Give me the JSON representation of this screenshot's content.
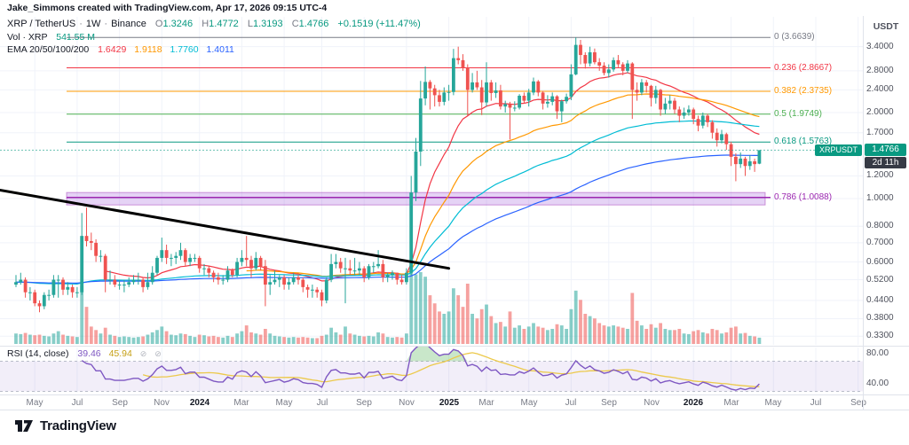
{
  "attribution": "Jake_Simmons created with TradingView.com, Apr 17, 2026 09:15 UTC-4",
  "header": {
    "symbol": "XRP / TetherUS",
    "interval": "1W",
    "exchange": "Binance",
    "o_label": "O",
    "o": "1.3246",
    "h_label": "H",
    "h": "1.4772",
    "l_label": "L",
    "l": "1.3193",
    "c_label": "C",
    "c": "1.4766",
    "change": "+0.1519 (+11.47%)"
  },
  "volume_legend": {
    "label": "Vol · XRP",
    "value": "541.55 M"
  },
  "ema_legend": {
    "label": "EMA 20/50/100/200",
    "values": [
      "1.6429",
      "1.9118",
      "1.7760",
      "1.4011"
    ],
    "colors": [
      "#f23645",
      "#ff9800",
      "#00bcd4",
      "#2962ff"
    ]
  },
  "rsi_legend": {
    "label": "RSI (14, close)",
    "value": "39.46",
    "ma_value": "45.94",
    "null1": "⊘",
    "null2": "⊘"
  },
  "price_scale": {
    "currency": "USDT",
    "ticks": [
      "3.4000",
      "2.8000",
      "2.4000",
      "2.0000",
      "1.7000",
      "1.2000",
      "1.0000",
      "0.8000",
      "0.7000",
      "0.6000",
      "0.5200",
      "0.4400",
      "0.3800",
      "0.3300"
    ],
    "current_price": "1.4766",
    "countdown": "2d 11h",
    "symbol_label": "XRPUSDT"
  },
  "rsi_scale": {
    "ticks": [
      {
        "label": "80.00",
        "value": 80
      },
      {
        "label": "40.00",
        "value": 40
      }
    ]
  },
  "time_scale": {
    "ticks": [
      {
        "label": "May",
        "week": 4
      },
      {
        "label": "Jul",
        "week": 13
      },
      {
        "label": "Sep",
        "week": 22
      },
      {
        "label": "Nov",
        "week": 31
      },
      {
        "label": "2024",
        "week": 39,
        "year": true
      },
      {
        "label": "Mar",
        "week": 48
      },
      {
        "label": "May",
        "week": 57
      },
      {
        "label": "Jul",
        "week": 65
      },
      {
        "label": "Sep",
        "week": 74
      },
      {
        "label": "Nov",
        "week": 83
      },
      {
        "label": "2025",
        "week": 92,
        "year": true
      },
      {
        "label": "Mar",
        "week": 100
      },
      {
        "label": "May",
        "week": 109
      },
      {
        "label": "Jul",
        "week": 118
      },
      {
        "label": "Sep",
        "week": 126
      },
      {
        "label": "Nov",
        "week": 135
      },
      {
        "label": "2026",
        "week": 144,
        "year": true
      },
      {
        "label": "Mar",
        "week": 152
      },
      {
        "label": "May",
        "week": 161
      },
      {
        "label": "Jul",
        "week": 170
      },
      {
        "label": "Sep",
        "week": 179
      }
    ]
  },
  "fib": {
    "levels": [
      {
        "label": "0 (3.6639)",
        "price": 3.6639,
        "color": "#787b86"
      },
      {
        "label": "0.236 (2.8667)",
        "price": 2.8667,
        "color": "#f23645"
      },
      {
        "label": "0.382 (2.3735)",
        "price": 2.3735,
        "color": "#ff9800"
      },
      {
        "label": "0.5 (1.9749)",
        "price": 1.9749,
        "color": "#4caf50"
      },
      {
        "label": "0.618 (1.5763)",
        "price": 1.5763,
        "color": "#089981"
      },
      {
        "label": "0.786 (1.0088)",
        "price": 1.0088,
        "color": "#9c27b0",
        "band": [
          0.95,
          1.05
        ]
      }
    ]
  },
  "trendline": {
    "w1": -3.4,
    "p1": 1.07,
    "w2": 92,
    "p2": 0.57
  },
  "footer": {
    "brand": "TradingView"
  },
  "chart_data": {
    "type": "candlestick",
    "symbol": "XRPUSDT",
    "exchange": "Binance",
    "timeframe": "1W",
    "scale": "log",
    "start_week": "2023-04-03",
    "columns": [
      "open",
      "high",
      "low",
      "close",
      "volume_millions"
    ],
    "ema_periods": [
      20,
      50,
      100,
      200
    ],
    "sub_indicator": {
      "name": "RSI",
      "period": 14,
      "bands": [
        70,
        30
      ],
      "last": 39.46,
      "ma_last": 45.94
    },
    "volume_last_label": "541.55 M",
    "price_range_visible": [
      0.317,
      4.14
    ],
    "candles": [
      [
        0.5,
        0.54,
        0.49,
        0.51,
        900
      ],
      [
        0.51,
        0.55,
        0.5,
        0.52,
        850
      ],
      [
        0.52,
        0.53,
        0.45,
        0.47,
        950
      ],
      [
        0.47,
        0.49,
        0.44,
        0.47,
        800
      ],
      [
        0.47,
        0.48,
        0.42,
        0.43,
        750
      ],
      [
        0.43,
        0.44,
        0.4,
        0.42,
        800
      ],
      [
        0.42,
        0.47,
        0.41,
        0.46,
        700
      ],
      [
        0.46,
        0.48,
        0.44,
        0.46,
        650
      ],
      [
        0.46,
        0.54,
        0.45,
        0.52,
        900
      ],
      [
        0.52,
        0.54,
        0.45,
        0.52,
        1100
      ],
      [
        0.52,
        0.53,
        0.46,
        0.48,
        800
      ],
      [
        0.48,
        0.51,
        0.46,
        0.49,
        700
      ],
      [
        0.49,
        0.5,
        0.45,
        0.47,
        650
      ],
      [
        0.47,
        0.49,
        0.45,
        0.47,
        600
      ],
      [
        0.47,
        0.89,
        0.46,
        0.74,
        5000
      ],
      [
        0.74,
        0.93,
        0.68,
        0.71,
        3200
      ],
      [
        0.71,
        0.76,
        0.66,
        0.7,
        1500
      ],
      [
        0.7,
        0.72,
        0.6,
        0.63,
        1200
      ],
      [
        0.63,
        0.66,
        0.6,
        0.63,
        900
      ],
      [
        0.63,
        0.64,
        0.47,
        0.52,
        1400
      ],
      [
        0.52,
        0.56,
        0.5,
        0.52,
        800
      ],
      [
        0.52,
        0.54,
        0.49,
        0.5,
        700
      ],
      [
        0.5,
        0.52,
        0.48,
        0.5,
        600
      ],
      [
        0.5,
        0.52,
        0.47,
        0.5,
        650
      ],
      [
        0.5,
        0.53,
        0.49,
        0.51,
        600
      ],
      [
        0.51,
        0.54,
        0.5,
        0.52,
        550
      ],
      [
        0.52,
        0.55,
        0.5,
        0.52,
        600
      ],
      [
        0.52,
        0.53,
        0.47,
        0.49,
        650
      ],
      [
        0.49,
        0.55,
        0.48,
        0.51,
        800
      ],
      [
        0.51,
        0.58,
        0.5,
        0.55,
        1000
      ],
      [
        0.55,
        0.63,
        0.54,
        0.62,
        1200
      ],
      [
        0.62,
        0.73,
        0.6,
        0.66,
        1500
      ],
      [
        0.66,
        0.69,
        0.59,
        0.62,
        1100
      ],
      [
        0.62,
        0.64,
        0.58,
        0.62,
        800
      ],
      [
        0.62,
        0.65,
        0.59,
        0.63,
        750
      ],
      [
        0.63,
        0.7,
        0.61,
        0.66,
        900
      ],
      [
        0.66,
        0.67,
        0.58,
        0.6,
        850
      ],
      [
        0.6,
        0.64,
        0.58,
        0.62,
        700
      ],
      [
        0.62,
        0.64,
        0.6,
        0.62,
        600
      ],
      [
        0.62,
        0.63,
        0.55,
        0.57,
        800
      ],
      [
        0.57,
        0.59,
        0.54,
        0.57,
        750
      ],
      [
        0.57,
        0.58,
        0.53,
        0.55,
        650
      ],
      [
        0.55,
        0.56,
        0.51,
        0.53,
        700
      ],
      [
        0.53,
        0.55,
        0.5,
        0.52,
        600
      ],
      [
        0.52,
        0.54,
        0.5,
        0.52,
        550
      ],
      [
        0.52,
        0.58,
        0.51,
        0.56,
        700
      ],
      [
        0.56,
        0.57,
        0.53,
        0.54,
        600
      ],
      [
        0.54,
        0.62,
        0.53,
        0.6,
        900
      ],
      [
        0.6,
        0.66,
        0.58,
        0.62,
        1100
      ],
      [
        0.62,
        0.74,
        0.58,
        0.61,
        1600
      ],
      [
        0.61,
        0.63,
        0.53,
        0.57,
        1000
      ],
      [
        0.57,
        0.65,
        0.56,
        0.62,
        900
      ],
      [
        0.62,
        0.63,
        0.56,
        0.58,
        800
      ],
      [
        0.58,
        0.61,
        0.42,
        0.5,
        1300
      ],
      [
        0.5,
        0.54,
        0.46,
        0.51,
        900
      ],
      [
        0.51,
        0.56,
        0.5,
        0.52,
        700
      ],
      [
        0.52,
        0.54,
        0.49,
        0.53,
        650
      ],
      [
        0.53,
        0.54,
        0.48,
        0.5,
        600
      ],
      [
        0.5,
        0.53,
        0.48,
        0.51,
        550
      ],
      [
        0.51,
        0.55,
        0.5,
        0.53,
        600
      ],
      [
        0.53,
        0.54,
        0.5,
        0.52,
        550
      ],
      [
        0.52,
        0.53,
        0.47,
        0.49,
        600
      ],
      [
        0.49,
        0.5,
        0.45,
        0.48,
        550
      ],
      [
        0.48,
        0.5,
        0.45,
        0.48,
        500
      ],
      [
        0.48,
        0.49,
        0.45,
        0.47,
        500
      ],
      [
        0.47,
        0.48,
        0.42,
        0.44,
        700
      ],
      [
        0.44,
        0.53,
        0.43,
        0.52,
        800
      ],
      [
        0.52,
        0.64,
        0.51,
        0.59,
        1400
      ],
      [
        0.59,
        0.64,
        0.57,
        0.6,
        1000
      ],
      [
        0.6,
        0.62,
        0.55,
        0.57,
        800
      ],
      [
        0.57,
        0.62,
        0.43,
        0.57,
        1500
      ],
      [
        0.57,
        0.61,
        0.54,
        0.56,
        900
      ],
      [
        0.56,
        0.62,
        0.54,
        0.56,
        800
      ],
      [
        0.56,
        0.6,
        0.54,
        0.57,
        700
      ],
      [
        0.57,
        0.58,
        0.51,
        0.53,
        650
      ],
      [
        0.53,
        0.59,
        0.52,
        0.58,
        700
      ],
      [
        0.58,
        0.6,
        0.55,
        0.58,
        650
      ],
      [
        0.58,
        0.66,
        0.57,
        0.59,
        1000
      ],
      [
        0.59,
        0.61,
        0.51,
        0.53,
        900
      ],
      [
        0.53,
        0.55,
        0.51,
        0.54,
        600
      ],
      [
        0.54,
        0.56,
        0.52,
        0.55,
        550
      ],
      [
        0.55,
        0.55,
        0.5,
        0.52,
        600
      ],
      [
        0.52,
        0.54,
        0.5,
        0.51,
        550
      ],
      [
        0.51,
        0.57,
        0.5,
        0.55,
        900
      ],
      [
        0.55,
        1.2,
        0.54,
        1.05,
        6500
      ],
      [
        1.05,
        1.63,
        0.98,
        1.46,
        6000
      ],
      [
        1.46,
        2.58,
        1.3,
        2.24,
        6200
      ],
      [
        2.24,
        2.9,
        2.12,
        2.56,
        5800
      ],
      [
        2.56,
        2.6,
        2.05,
        2.43,
        4200
      ],
      [
        2.43,
        2.5,
        2.1,
        2.3,
        3500
      ],
      [
        2.3,
        2.4,
        2.1,
        2.18,
        2800
      ],
      [
        2.18,
        2.45,
        2.12,
        2.35,
        2600
      ],
      [
        2.35,
        2.5,
        2.2,
        2.36,
        2800
      ],
      [
        2.36,
        3.34,
        2.3,
        3.1,
        4800
      ],
      [
        3.1,
        3.4,
        2.95,
        3.05,
        4200
      ],
      [
        3.05,
        3.2,
        2.8,
        2.87,
        3200
      ],
      [
        2.87,
        2.95,
        1.95,
        2.4,
        5200
      ],
      [
        2.4,
        2.75,
        2.35,
        2.55,
        2600
      ],
      [
        2.55,
        2.8,
        2.4,
        2.45,
        2200
      ],
      [
        2.45,
        2.6,
        1.96,
        2.17,
        3000
      ],
      [
        2.17,
        3.0,
        2.1,
        2.55,
        3400
      ],
      [
        2.55,
        2.6,
        2.2,
        2.34,
        2400
      ],
      [
        2.34,
        2.55,
        2.25,
        2.39,
        1800
      ],
      [
        2.39,
        2.5,
        2.05,
        2.1,
        1900
      ],
      [
        2.1,
        2.2,
        2.0,
        2.14,
        1500
      ],
      [
        2.14,
        2.18,
        1.61,
        2.08,
        2800
      ],
      [
        2.08,
        2.19,
        2.02,
        2.08,
        1400
      ],
      [
        2.08,
        2.32,
        2.05,
        2.29,
        1600
      ],
      [
        2.29,
        2.35,
        2.15,
        2.2,
        1300
      ],
      [
        2.2,
        2.42,
        2.1,
        2.35,
        1500
      ],
      [
        2.35,
        2.65,
        2.3,
        2.57,
        1800
      ],
      [
        2.57,
        2.6,
        2.28,
        2.35,
        1500
      ],
      [
        2.35,
        2.38,
        2.05,
        2.15,
        1400
      ],
      [
        2.15,
        2.3,
        2.08,
        2.18,
        1200
      ],
      [
        2.18,
        2.35,
        2.12,
        2.28,
        1300
      ],
      [
        2.28,
        2.3,
        1.9,
        2.02,
        1700
      ],
      [
        2.02,
        2.22,
        1.85,
        2.19,
        1600
      ],
      [
        2.19,
        2.33,
        2.15,
        2.27,
        1300
      ],
      [
        2.27,
        2.95,
        2.21,
        2.72,
        3000
      ],
      [
        2.72,
        3.66,
        2.7,
        3.45,
        4600
      ],
      [
        3.45,
        3.59,
        2.95,
        3.18,
        3800
      ],
      [
        3.18,
        3.25,
        2.85,
        2.97,
        2600
      ],
      [
        2.97,
        3.4,
        2.9,
        3.25,
        2400
      ],
      [
        3.25,
        3.35,
        2.95,
        3.0,
        2200
      ],
      [
        3.0,
        3.1,
        2.8,
        2.92,
        1800
      ],
      [
        2.92,
        3.0,
        2.7,
        2.75,
        1600
      ],
      [
        2.75,
        2.95,
        2.65,
        2.83,
        1500
      ],
      [
        2.83,
        3.12,
        2.78,
        3.05,
        1600
      ],
      [
        3.05,
        3.18,
        2.88,
        2.95,
        1500
      ],
      [
        2.95,
        3.0,
        2.7,
        2.8,
        1400
      ],
      [
        2.8,
        3.05,
        2.75,
        2.97,
        1300
      ],
      [
        2.97,
        3.0,
        1.9,
        2.4,
        4400
      ],
      [
        2.4,
        2.55,
        2.2,
        2.35,
        2000
      ],
      [
        2.35,
        2.62,
        2.3,
        2.55,
        1600
      ],
      [
        2.55,
        2.6,
        2.35,
        2.48,
        1300
      ],
      [
        2.48,
        2.5,
        2.1,
        2.25,
        1700
      ],
      [
        2.25,
        2.48,
        2.15,
        2.4,
        1400
      ],
      [
        2.4,
        2.42,
        1.95,
        2.05,
        1800
      ],
      [
        2.05,
        2.25,
        1.98,
        2.15,
        1300
      ],
      [
        2.15,
        2.3,
        2.05,
        2.2,
        1200
      ],
      [
        2.2,
        2.25,
        1.98,
        2.05,
        1200
      ],
      [
        2.05,
        2.1,
        1.85,
        1.95,
        1300
      ],
      [
        1.95,
        2.08,
        1.9,
        2.0,
        900
      ],
      [
        2.0,
        2.12,
        1.95,
        2.05,
        850
      ],
      [
        2.05,
        2.08,
        1.82,
        1.9,
        1100
      ],
      [
        1.9,
        1.95,
        1.72,
        1.8,
        1200
      ],
      [
        1.8,
        2.0,
        1.76,
        1.95,
        1000
      ],
      [
        1.95,
        1.98,
        1.78,
        1.85,
        900
      ],
      [
        1.85,
        1.88,
        1.62,
        1.7,
        1300
      ],
      [
        1.7,
        1.76,
        1.52,
        1.6,
        1200
      ],
      [
        1.6,
        1.74,
        1.56,
        1.68,
        900
      ],
      [
        1.68,
        1.7,
        1.48,
        1.55,
        1000
      ],
      [
        1.55,
        1.58,
        1.3,
        1.4,
        1400
      ],
      [
        1.4,
        1.44,
        1.15,
        1.32,
        1500
      ],
      [
        1.32,
        1.45,
        1.28,
        1.38,
        900
      ],
      [
        1.38,
        1.4,
        1.2,
        1.3,
        950
      ],
      [
        1.3,
        1.42,
        1.26,
        1.35,
        700
      ],
      [
        1.35,
        1.38,
        1.24,
        1.32,
        650
      ],
      [
        1.3246,
        1.4772,
        1.3193,
        1.4766,
        541.55
      ]
    ]
  }
}
